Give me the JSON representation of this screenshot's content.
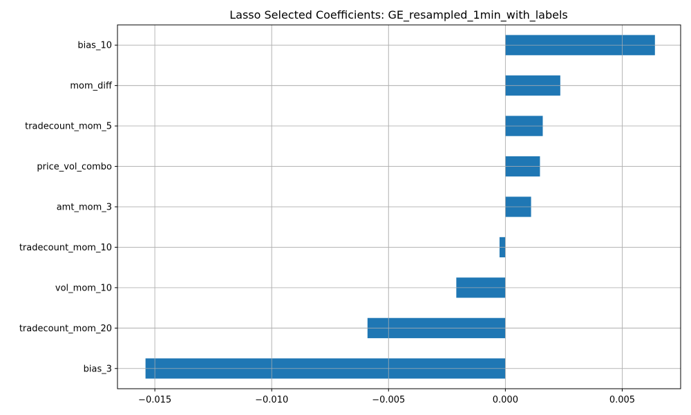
{
  "chart_data": {
    "type": "bar",
    "orientation": "horizontal",
    "title": "Lasso Selected Coefficients: GE_resampled_1min_with_labels",
    "xlabel": "",
    "ylabel": "",
    "categories": [
      "bias_10",
      "mom_diff",
      "tradecount_mom_5",
      "price_vol_combo",
      "amt_mom_3",
      "tradecount_mom_10",
      "vol_mom_10",
      "tradecount_mom_20",
      "bias_3"
    ],
    "values": [
      0.0064,
      0.00235,
      0.0016,
      0.00148,
      0.0011,
      -0.00025,
      -0.0021,
      -0.0059,
      -0.0154
    ],
    "xlim": [
      -0.0166,
      0.0075
    ],
    "xticks": [
      -0.015,
      -0.01,
      -0.005,
      0.0,
      0.005
    ],
    "xtick_labels": [
      "−0.015",
      "−0.010",
      "−0.005",
      "0.000",
      "0.005"
    ],
    "grid": true,
    "legend": "none",
    "bar_color": "#1f77b4"
  }
}
